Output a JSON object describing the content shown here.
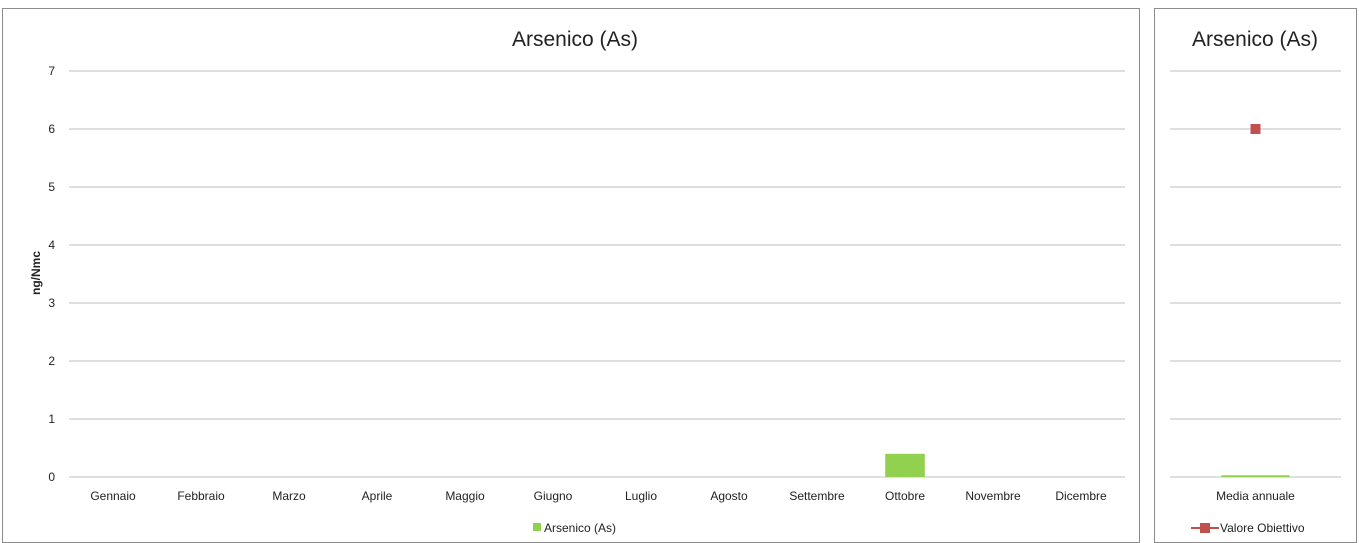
{
  "colors": {
    "bar": "#92d050",
    "marker": "#c0504d",
    "grid": "#bfbfbf"
  },
  "chart_data": [
    {
      "type": "bar",
      "title": "Arsenico (As)",
      "ylabel": "ng/Nmc",
      "xlabel": "",
      "ylim": [
        0,
        7
      ],
      "yticks": [
        "0",
        "1",
        "2",
        "3",
        "4",
        "5",
        "6",
        "7"
      ],
      "grid": true,
      "legend_position": "bottom",
      "categories": [
        "Gennaio",
        "Febbraio",
        "Marzo",
        "Aprile",
        "Maggio",
        "Giugno",
        "Luglio",
        "Agosto",
        "Settembre",
        "Ottobre",
        "Novembre",
        "Dicembre"
      ],
      "series": [
        {
          "name": "Arsenico (As)",
          "values": [
            null,
            null,
            null,
            null,
            null,
            null,
            null,
            null,
            null,
            0.4,
            null,
            null
          ]
        }
      ]
    },
    {
      "type": "bar",
      "title": "Arsenico (As)",
      "ylim": [
        0,
        7
      ],
      "grid": true,
      "legend_position": "bottom",
      "categories": [
        "Media annuale"
      ],
      "series": [
        {
          "name": "Arsenico (As)",
          "values": [
            0.03
          ]
        },
        {
          "name": "Valore Obiettivo",
          "values": [
            6
          ],
          "render": "line-marker"
        }
      ],
      "legend": [
        "Valore Obiettivo"
      ]
    }
  ]
}
